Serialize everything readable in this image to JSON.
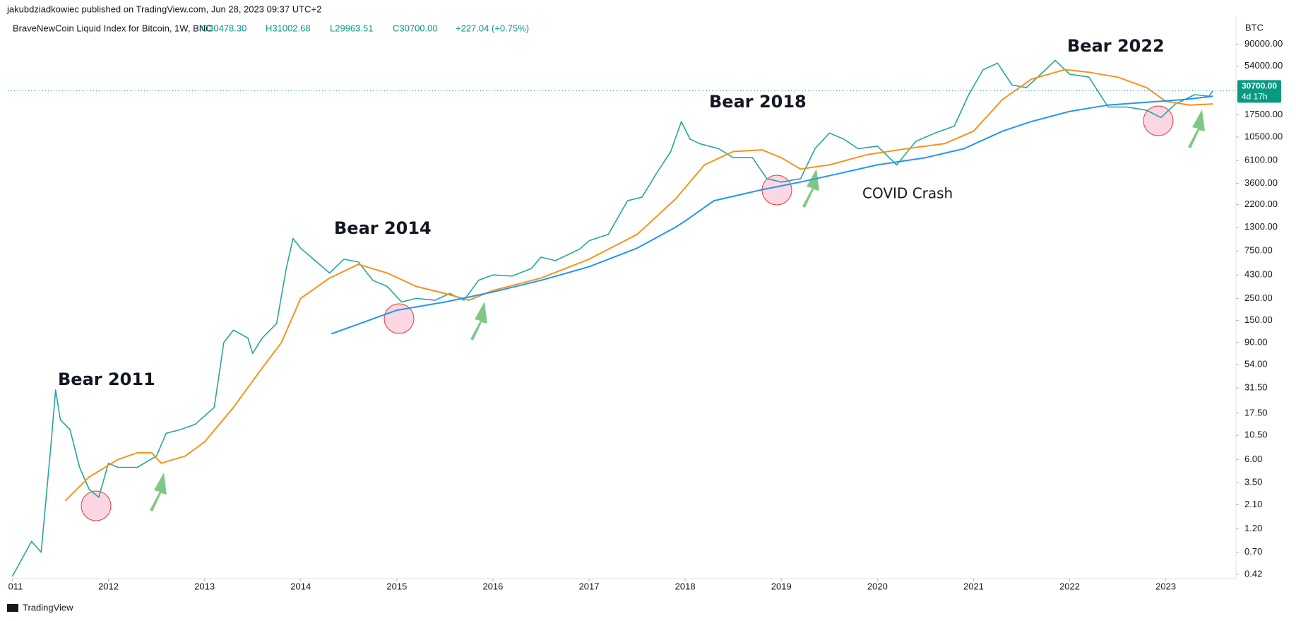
{
  "header": {
    "publisher": "jakubdziadkowiec published on TradingView.com, Jun 28, 2023 09:37 UTC+2",
    "symbol": "BraveNewCoin Liquid Index for Bitcoin, 1W, BNC",
    "open": "O30478.30",
    "high": "H31002.68",
    "low": "L29963.51",
    "close": "C30700.00",
    "change": "+227.04 (+0.75%)"
  },
  "footer": "TradingView",
  "chart_data": {
    "type": "line",
    "log_scale": true,
    "currency": "BTC",
    "last_value": 30700,
    "last_label": "30700.00",
    "countdown": "4d 17h",
    "xlim": [
      2010.96,
      2023.73
    ],
    "ylim": [
      0.38,
      172000
    ],
    "xticks": [
      {
        "value": 2011,
        "label": "011"
      },
      2012,
      2013,
      2014,
      2015,
      2016,
      2017,
      2018,
      2019,
      2020,
      2021,
      2022,
      2023
    ],
    "yticks": [
      {
        "value": 90000,
        "label": "90000.00"
      },
      {
        "value": 54000,
        "label": "54000.00"
      },
      {
        "value": 17500,
        "label": "17500.00"
      },
      {
        "value": 10500,
        "label": "10500.00"
      },
      {
        "value": 6100,
        "label": "6100.00"
      },
      {
        "value": 3600,
        "label": "3600.00"
      },
      {
        "value": 2200,
        "label": "2200.00"
      },
      {
        "value": 1300,
        "label": "1300.00"
      },
      {
        "value": 750,
        "label": "750.00"
      },
      {
        "value": 430,
        "label": "430.00"
      },
      {
        "value": 250,
        "label": "250.00"
      },
      {
        "value": 150,
        "label": "150.00"
      },
      {
        "value": 90,
        "label": "90.00"
      },
      {
        "value": 54,
        "label": "54.00"
      },
      {
        "value": 31.5,
        "label": "31.50"
      },
      {
        "value": 17.5,
        "label": "17.50"
      },
      {
        "value": 10.5,
        "label": "10.50"
      },
      {
        "value": 6,
        "label": "6.00"
      },
      {
        "value": 3.5,
        "label": "3.50"
      },
      {
        "value": 2.1,
        "label": "2.10"
      },
      {
        "value": 1.2,
        "label": "1.20"
      },
      {
        "value": 0.7,
        "label": "0.70"
      },
      {
        "value": 0.42,
        "label": "0.42"
      }
    ],
    "series": [
      {
        "color": "#26a69a",
        "x": [
          2011.0,
          2011.2,
          2011.3,
          2011.4,
          2011.45,
          2011.5,
          2011.6,
          2011.7,
          2011.8,
          2011.9,
          2012.0,
          2012.1,
          2012.3,
          2012.5,
          2012.6,
          2012.75,
          2012.9,
          2013.1,
          2013.2,
          2013.3,
          2013.45,
          2013.5,
          2013.6,
          2013.75,
          2013.85,
          2013.92,
          2014.0,
          2014.15,
          2014.3,
          2014.45,
          2014.6,
          2014.75,
          2014.9,
          2015.05,
          2015.2,
          2015.4,
          2015.55,
          2015.7,
          2015.85,
          2016.0,
          2016.2,
          2016.4,
          2016.5,
          2016.65,
          2016.9,
          2017.0,
          2017.2,
          2017.4,
          2017.55,
          2017.7,
          2017.85,
          2017.96,
          2018.05,
          2018.15,
          2018.35,
          2018.5,
          2018.7,
          2018.85,
          2019.0,
          2019.2,
          2019.35,
          2019.5,
          2019.65,
          2019.8,
          2020.0,
          2020.2,
          2020.4,
          2020.6,
          2020.8,
          2020.95,
          2021.1,
          2021.25,
          2021.4,
          2021.55,
          2021.7,
          2021.85,
          2022.0,
          2022.2,
          2022.4,
          2022.6,
          2022.8,
          2022.95,
          2023.1,
          2023.3,
          2023.45,
          2023.49
        ],
        "values": [
          0.4,
          0.9,
          0.7,
          8,
          30,
          15,
          12,
          5,
          3,
          2.5,
          5.5,
          5,
          5,
          6.5,
          11,
          12,
          13.5,
          20,
          90,
          120,
          100,
          70,
          100,
          140,
          500,
          1000,
          800,
          600,
          450,
          620,
          580,
          380,
          330,
          230,
          250,
          240,
          280,
          240,
          380,
          430,
          420,
          500,
          650,
          600,
          780,
          950,
          1100,
          2400,
          2600,
          4500,
          7500,
          15000,
          10000,
          9000,
          8000,
          6500,
          6500,
          4000,
          3700,
          4000,
          8000,
          11500,
          10000,
          8000,
          8500,
          5500,
          9500,
          11500,
          13500,
          28000,
          50000,
          58000,
          35000,
          33000,
          45000,
          62000,
          45000,
          42000,
          21000,
          21000,
          19500,
          16500,
          22500,
          28000,
          27000,
          30700
        ]
      },
      {
        "color": "#f7931a",
        "x": [
          2011.55,
          2011.8,
          2012.1,
          2012.3,
          2012.45,
          2012.55,
          2012.8,
          2013.0,
          2013.3,
          2013.6,
          2013.8,
          2014.0,
          2014.3,
          2014.6,
          2014.9,
          2015.2,
          2015.5,
          2015.75,
          2016.0,
          2016.5,
          2017.0,
          2017.5,
          2017.9,
          2018.2,
          2018.5,
          2018.8,
          2019.0,
          2019.2,
          2019.5,
          2019.9,
          2020.3,
          2020.7,
          2021.0,
          2021.3,
          2021.6,
          2021.95,
          2022.2,
          2022.5,
          2022.8,
          2023.0,
          2023.25,
          2023.49
        ],
        "values": [
          2.3,
          4,
          6,
          7,
          7,
          5.5,
          6.5,
          9,
          20,
          50,
          90,
          250,
          400,
          550,
          450,
          330,
          280,
          240,
          300,
          400,
          620,
          1100,
          2500,
          5500,
          7500,
          7800,
          6500,
          5000,
          5500,
          7000,
          8000,
          9000,
          12000,
          25000,
          40000,
          50000,
          47000,
          42000,
          33000,
          24000,
          22000,
          22600
        ]
      },
      {
        "color": "#2196f3",
        "x": [
          2014.32,
          2015.0,
          2015.5,
          2016.0,
          2016.5,
          2017.0,
          2017.5,
          2017.9,
          2018.0,
          2018.3,
          2018.8,
          2019.2,
          2019.6,
          2020.0,
          2020.5,
          2020.9,
          2021.3,
          2021.6,
          2022.0,
          2022.4,
          2022.8,
          2023.2,
          2023.49
        ],
        "values": [
          110,
          190,
          230,
          290,
          380,
          520,
          800,
          1300,
          1500,
          2400,
          3100,
          3700,
          4500,
          5500,
          6500,
          8000,
          12000,
          15000,
          19000,
          22000,
          23500,
          25000,
          27000
        ]
      }
    ],
    "annotations": [
      "Bear 2011",
      "Bear 2014",
      "Bear 2018",
      "COVID Crash",
      "Bear 2022"
    ]
  }
}
